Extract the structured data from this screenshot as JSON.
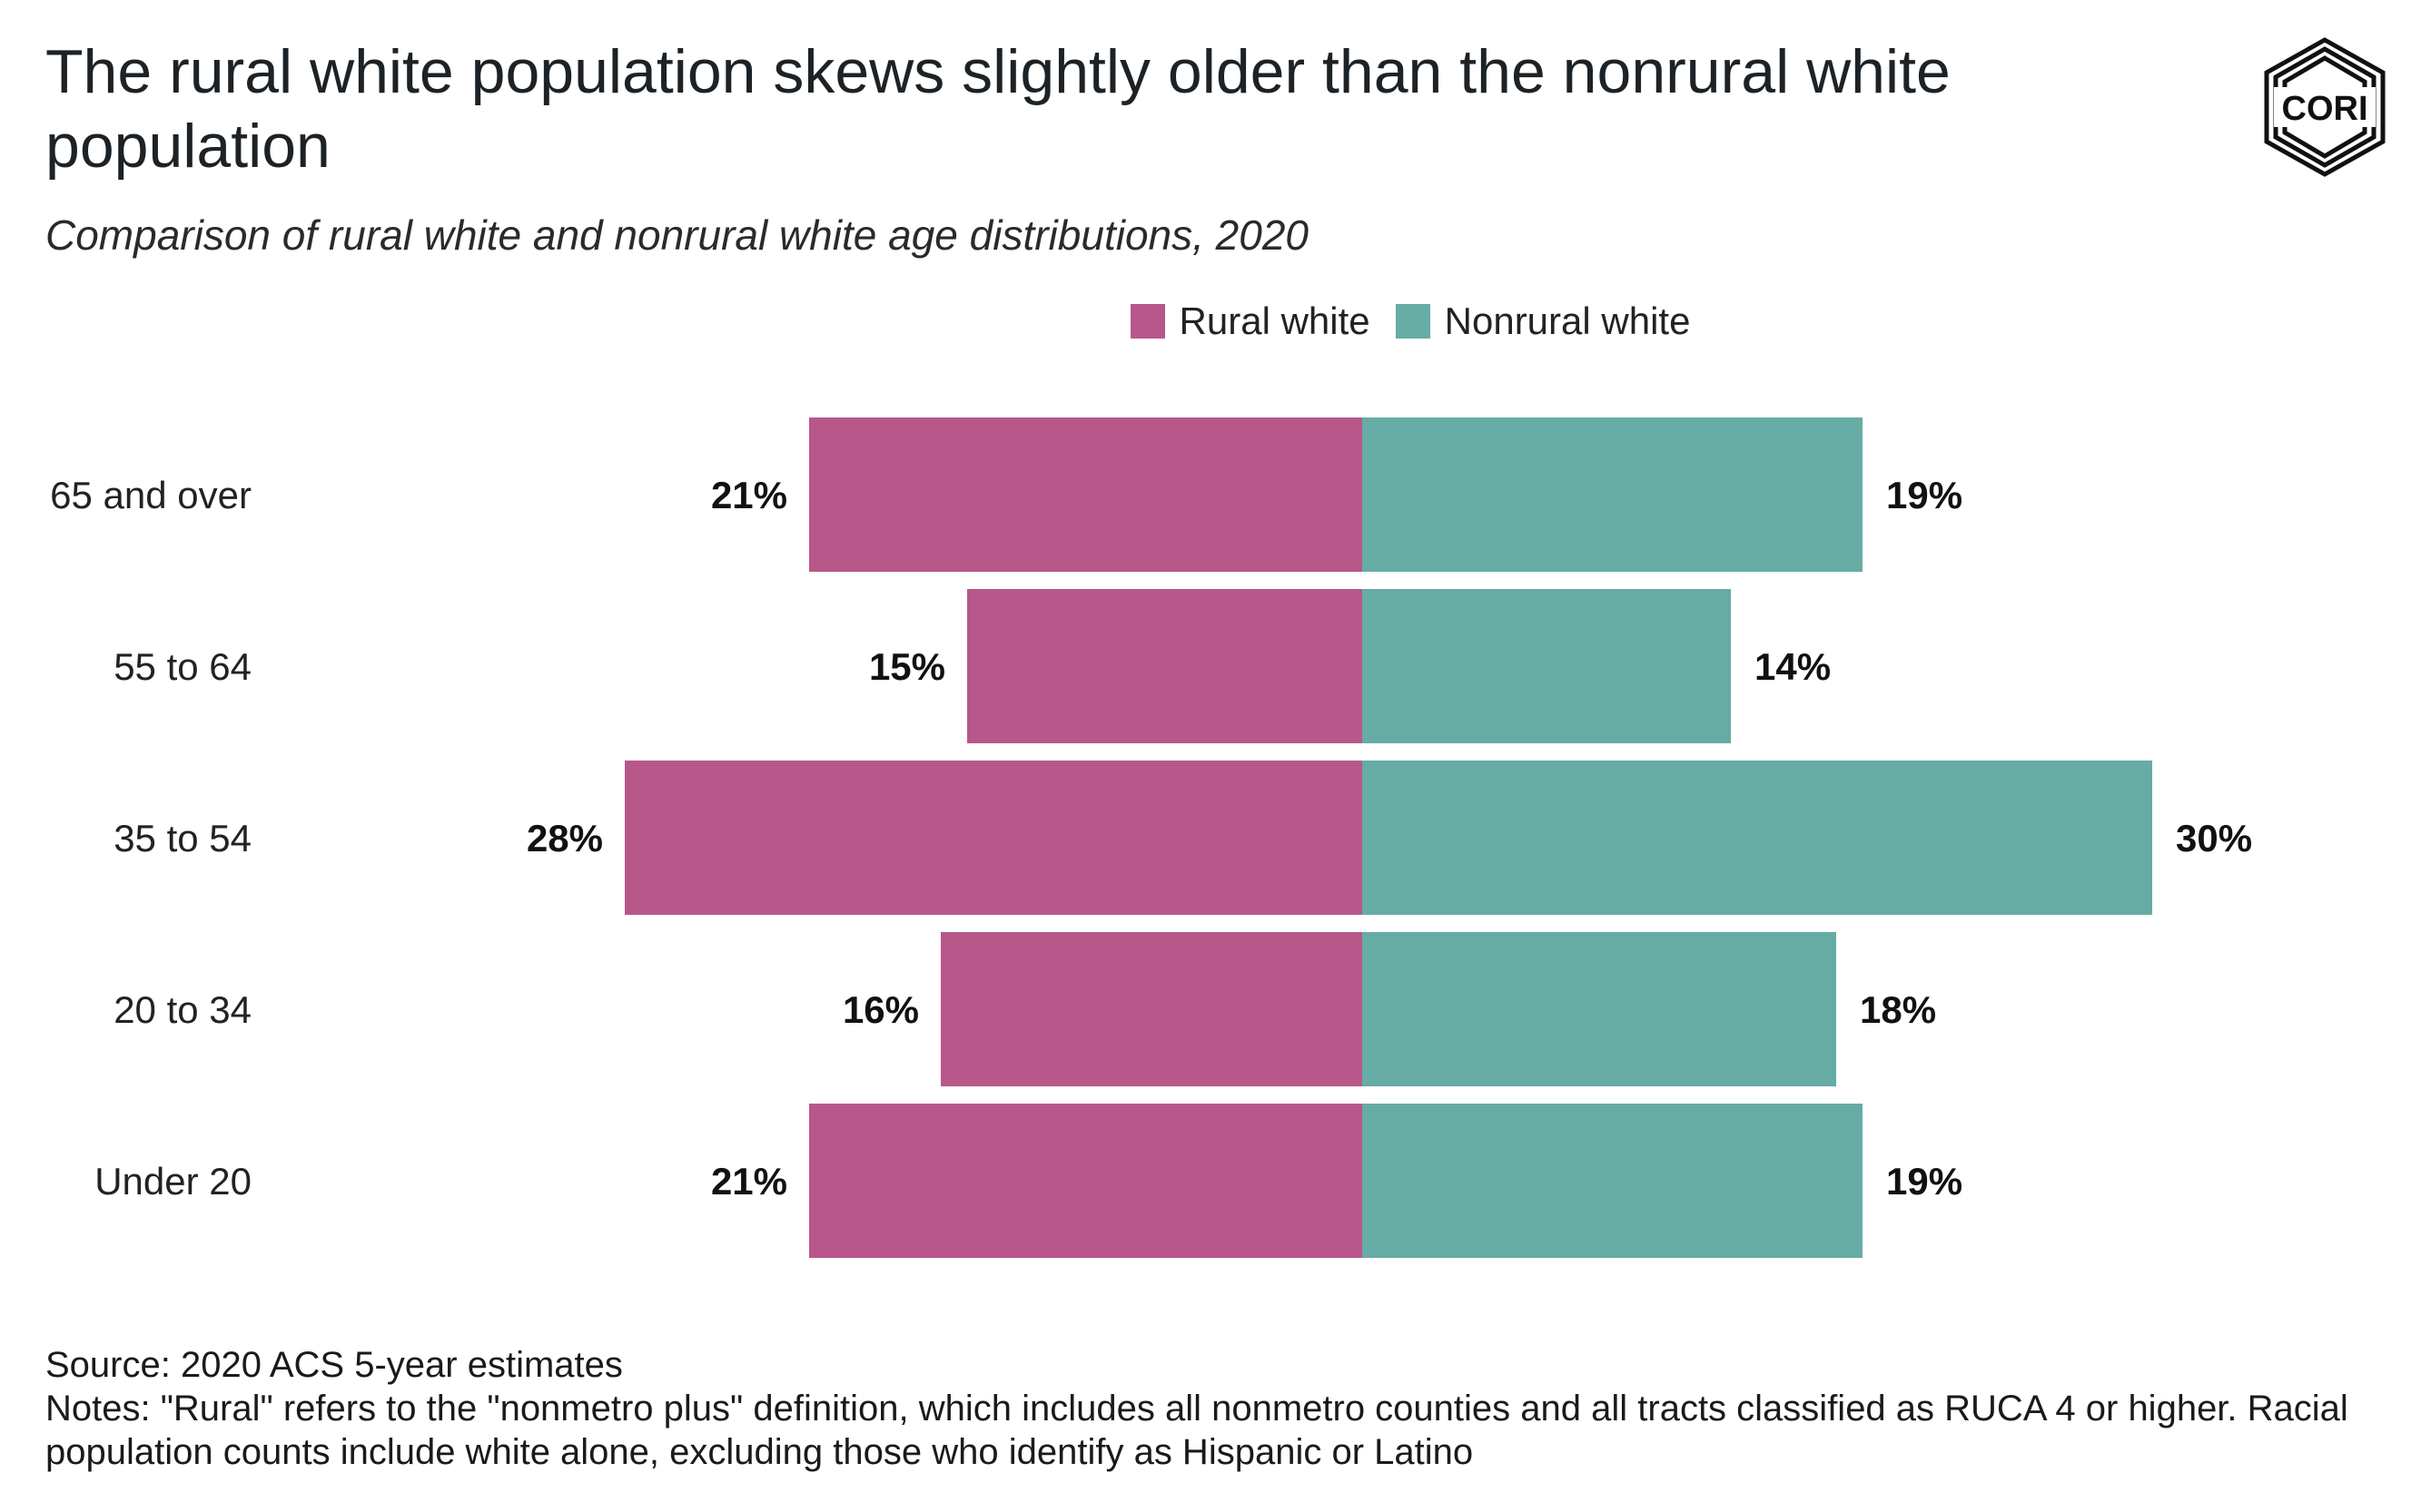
{
  "title": "The rural white population skews slightly older than the nonrural white population",
  "subtitle": "Comparison of rural white and nonrural white age distributions, 2020",
  "logo_text": "CORI",
  "legend": [
    {
      "label": "Rural white",
      "color": "#b8578a"
    },
    {
      "label": "Nonrural white",
      "color": "#66aca4"
    }
  ],
  "chart_data": {
    "type": "bar",
    "orientation": "horizontal-diverging",
    "categories": [
      "65 and over",
      "55 to 64",
      "35 to 54",
      "20 to 34",
      "Under 20"
    ],
    "series": [
      {
        "name": "Rural white",
        "values": [
          21,
          15,
          28,
          16,
          21
        ],
        "labels": [
          "21%",
          "15%",
          "28%",
          "16%",
          "21%"
        ],
        "color": "#b8578a"
      },
      {
        "name": "Nonrural white",
        "values": [
          19,
          14,
          30,
          18,
          19
        ],
        "labels": [
          "19%",
          "14%",
          "30%",
          "18%",
          "19%"
        ],
        "color": "#66aca4"
      }
    ],
    "unit": "%",
    "grid": false,
    "legend_position": "top-center"
  },
  "footer": {
    "source": "Source: 2020 ACS 5-year estimates",
    "notes": "Notes: \"Rural\" refers to the \"nonmetro plus\" definition, which includes all nonmetro counties and all tracts classified as RUCA 4 or higher. Racial population counts include white alone, excluding those who identify as Hispanic or Latino"
  }
}
